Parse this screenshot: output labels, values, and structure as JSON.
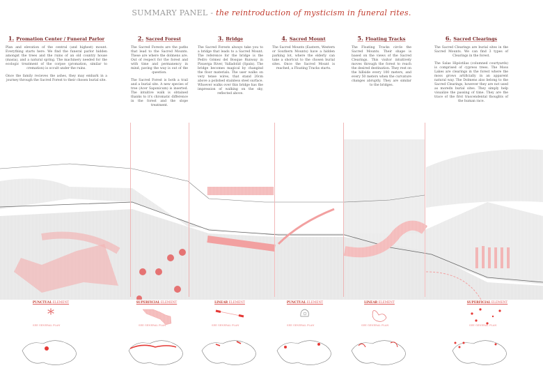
{
  "title": {
    "main": "SUMMARY PANEL - ",
    "subtitle": "the reintroduction of mysticism in funeral rites."
  },
  "columns": [
    {
      "num": "1.",
      "heading": "Promation Center / Funeral Parlor",
      "paragraphs": [
        "Plan and elevation of the central (and highest) mount. Everything starts here. We find the funeral parlor hidden amongst the trees and the ruins of an old country house (masia), and a natural spring. The machinery needed for the ecologic treatment of the corpse (promation, similar to cremation) is occult under the ruins.",
        "Once the family recieves the ashes, they may embark in a journey through the Sacred Forest to their chosen burial site."
      ]
    },
    {
      "num": "2.",
      "heading": "Sacred Forest",
      "paragraphs": [
        "The Sacred Forests are the paths that lead to the Sacred Mounts. These are where the dolmens are. Out of respect for the forest and with time and permanency in mind, paving the way is out of the question.",
        "The Sacred Forest is both a trail and a burial site. A new species of tree (Acer Saponicum) is inserted. The intuitive walk is obtained thanks to it's chromatic difference in the forest and the slope treatment."
      ]
    },
    {
      "num": "3.",
      "heading": "Bridge",
      "paragraphs": [
        "The Sacred Forests always take you to a bridge that leads to a Sacred Mount. The reference for the bridge is the Pedro Gómez del Bosque Runway in Pisuerga River, Valladolid (Spain). The bridge becomes magical by changind the floor materials. The user walks on very tense wires, that stand 20cm above a polished stainless steel surface. Whoever walks over this bridge has the impression of walking on the sky, reflected above."
      ]
    },
    {
      "num": "4.",
      "heading": "Sacred Mount",
      "paragraphs": [
        "The Sacred Mounts (Eastern, Western or Southern Mounts) have a hidden parking lot, where the elderly can take a shortcut to the chosen burial sites. Once the Sacred Mount is reached, a Floating Tracks starts."
      ]
    },
    {
      "num": "5.",
      "heading": "Floating Tracks",
      "paragraphs": [
        "The Floating Tracks circle the Sacred Mounts. Their shape is based on the views of the Sacred Clearings. This visitor intuitively moves through the forest to reach the desired destination. They rest on the hillside every 100 meters, and every 50 meters when the curvature changes abruptly. They are similar to the bridges."
      ]
    },
    {
      "num": "6.",
      "heading": "Sacred Clearings",
      "paragraphs": [
        "The Sacred Clearings are burial sites in the Sacred Mounts. We can find 3 types of Clearings in the forest.",
        "The Salas Hipóstilas (columned courtyards) is comprised of cypress trees. The Moss Lakes are clearings in the forest where the moss grows artificially in an apparent natural way. The Dolmens also belong to the Sacred Clearings, however they are not used as moredn burial sites. They simply help visualize the passing of time. They are the trace of the first trascendental thoughts of the human race."
      ]
    }
  ],
  "elements": [
    {
      "type": "PUNCTUAL",
      "suffix": "ELEMENT",
      "see": "SEE GENERAL PLAN",
      "icon": "asterisk-icon"
    },
    {
      "type": "SUPERFICIAL",
      "suffix": "ELEMENT",
      "see": "SEE GENERAL PLAN",
      "icon": "forest-area-icon"
    },
    {
      "type": "LINEAR",
      "suffix": "ELEMENT",
      "see": "SEE GENERAL PLAN",
      "icon": "bridge-line-icon"
    },
    {
      "type": "PUNCTUAL",
      "suffix": "ELEMENT",
      "see": "SEE GENERAL PLAN",
      "icon": "mount-icon"
    },
    {
      "type": "LINEAR",
      "suffix": "ELEMENT",
      "see": "SEE GENERAL PLAN",
      "icon": "track-loop-icon"
    },
    {
      "type": "SUPERFICIAL",
      "suffix": "ELEMENT",
      "see": "SEE GENERAL PLAN",
      "icon": "clearing-dots-icon"
    }
  ],
  "colors": {
    "accent": "#e0474c",
    "heading": "#7a2a2a",
    "drawing_gray": "#c8c8c8"
  }
}
